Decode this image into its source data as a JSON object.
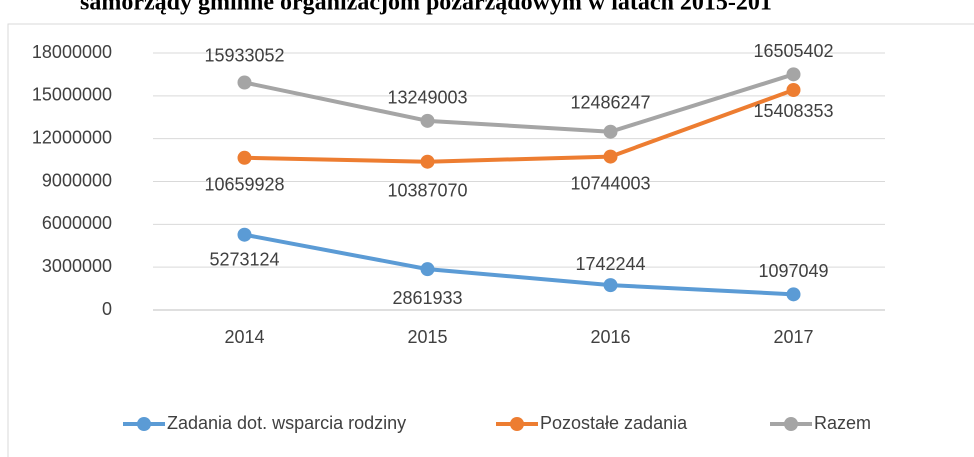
{
  "chart_data": {
    "type": "line",
    "title": "samorządy gminne organizacjom pozarządowym w latach 2015-201",
    "categories": [
      "2014",
      "2015",
      "2016",
      "2017"
    ],
    "series": [
      {
        "name": "Zadania dot. wsparcia rodziny",
        "color": "#5b9bd5",
        "values": [
          5273124,
          2861933,
          1742244,
          1097049
        ]
      },
      {
        "name": "Pozostałe zadania",
        "color": "#ed7d31",
        "values": [
          10659928,
          10387070,
          10744003,
          15408353
        ]
      },
      {
        "name": "Razem",
        "color": "#a5a5a5",
        "values": [
          15933052,
          13249003,
          12486247,
          16505402
        ]
      }
    ],
    "ylim": [
      0,
      18000000
    ],
    "yticks": [
      0,
      3000000,
      6000000,
      9000000,
      12000000,
      15000000,
      18000000
    ],
    "grid": true,
    "legend": "bottom"
  }
}
